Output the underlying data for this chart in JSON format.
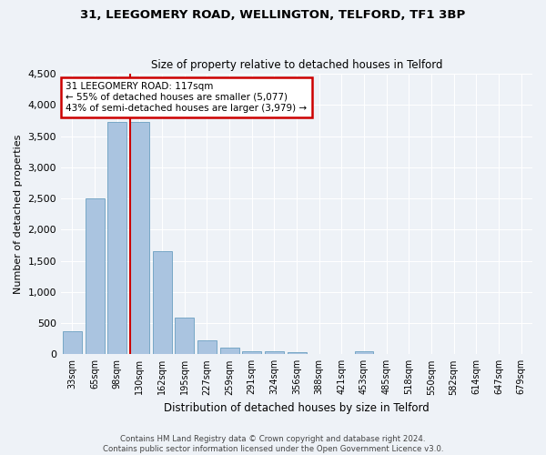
{
  "title1": "31, LEEGOMERY ROAD, WELLINGTON, TELFORD, TF1 3BP",
  "title2": "Size of property relative to detached houses in Telford",
  "xlabel": "Distribution of detached houses by size in Telford",
  "ylabel": "Number of detached properties",
  "footnote1": "Contains HM Land Registry data © Crown copyright and database right 2024.",
  "footnote2": "Contains public sector information licensed under the Open Government Licence v3.0.",
  "annotation_line1": "31 LEEGOMERY ROAD: 117sqm",
  "annotation_line2": "← 55% of detached houses are smaller (5,077)",
  "annotation_line3": "43% of semi-detached houses are larger (3,979) →",
  "categories": [
    "33sqm",
    "65sqm",
    "98sqm",
    "130sqm",
    "162sqm",
    "195sqm",
    "227sqm",
    "259sqm",
    "291sqm",
    "324sqm",
    "356sqm",
    "388sqm",
    "421sqm",
    "453sqm",
    "485sqm",
    "518sqm",
    "550sqm",
    "582sqm",
    "614sqm",
    "647sqm",
    "679sqm"
  ],
  "values": [
    370,
    2500,
    3720,
    3720,
    1650,
    590,
    220,
    100,
    55,
    45,
    30,
    0,
    0,
    50,
    0,
    0,
    0,
    0,
    0,
    0,
    0
  ],
  "bar_color": "#aac4e0",
  "bar_edge_color": "#6a9fc0",
  "highlight_bar_index": 3,
  "vline_x": 2.59,
  "highlight_color": "#cc0000",
  "ylim": [
    0,
    4500
  ],
  "yticks": [
    0,
    500,
    1000,
    1500,
    2000,
    2500,
    3000,
    3500,
    4000,
    4500
  ],
  "bg_color": "#eef2f7",
  "grid_color": "#ffffff",
  "annotation_box_color": "#cc0000"
}
